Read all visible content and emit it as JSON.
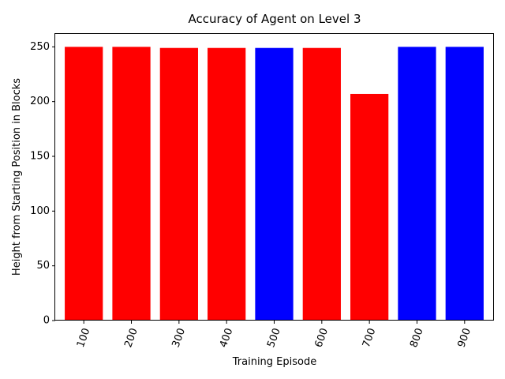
{
  "chart_data": {
    "type": "bar",
    "title": "Accuracy of Agent on Level 3",
    "xlabel": "Training Episode",
    "ylabel": "Height from Starting Position in Blocks",
    "categories": [
      "100",
      "200",
      "300",
      "400",
      "500",
      "600",
      "700",
      "800",
      "900"
    ],
    "values": [
      250,
      250,
      249,
      249,
      249,
      249,
      207,
      250,
      250
    ],
    "bar_colors": [
      "#ff0000",
      "#ff0000",
      "#ff0000",
      "#ff0000",
      "#0000ff",
      "#ff0000",
      "#ff0000",
      "#0000ff",
      "#0000ff"
    ],
    "ylim": [
      0,
      262.5
    ],
    "yticks": [
      0,
      50,
      100,
      150,
      200,
      250
    ],
    "xtick_rotation_deg": 70,
    "grid": false
  }
}
